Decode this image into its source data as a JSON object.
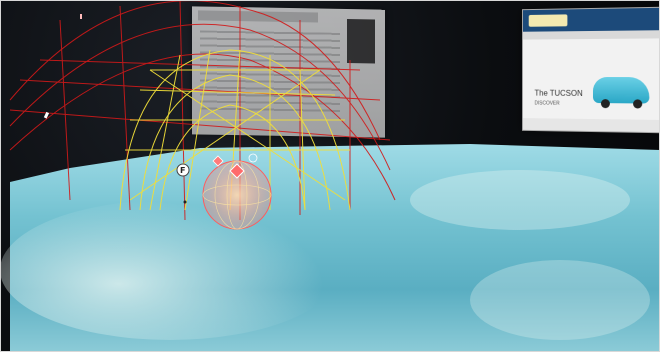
{
  "scene": {
    "right_panel": {
      "headline": "The TUCSON",
      "subline": "DISCOVER"
    },
    "markers": {
      "flag_label": "F"
    },
    "colors": {
      "outer_dome": "#d11a1a",
      "inner_dome": "#f0de3a",
      "core_sphere": "#f29a6a",
      "water": "#8fd0dc",
      "marker_diamond": "#ff7a7a",
      "marker_circle": "#9ad8ea"
    }
  }
}
